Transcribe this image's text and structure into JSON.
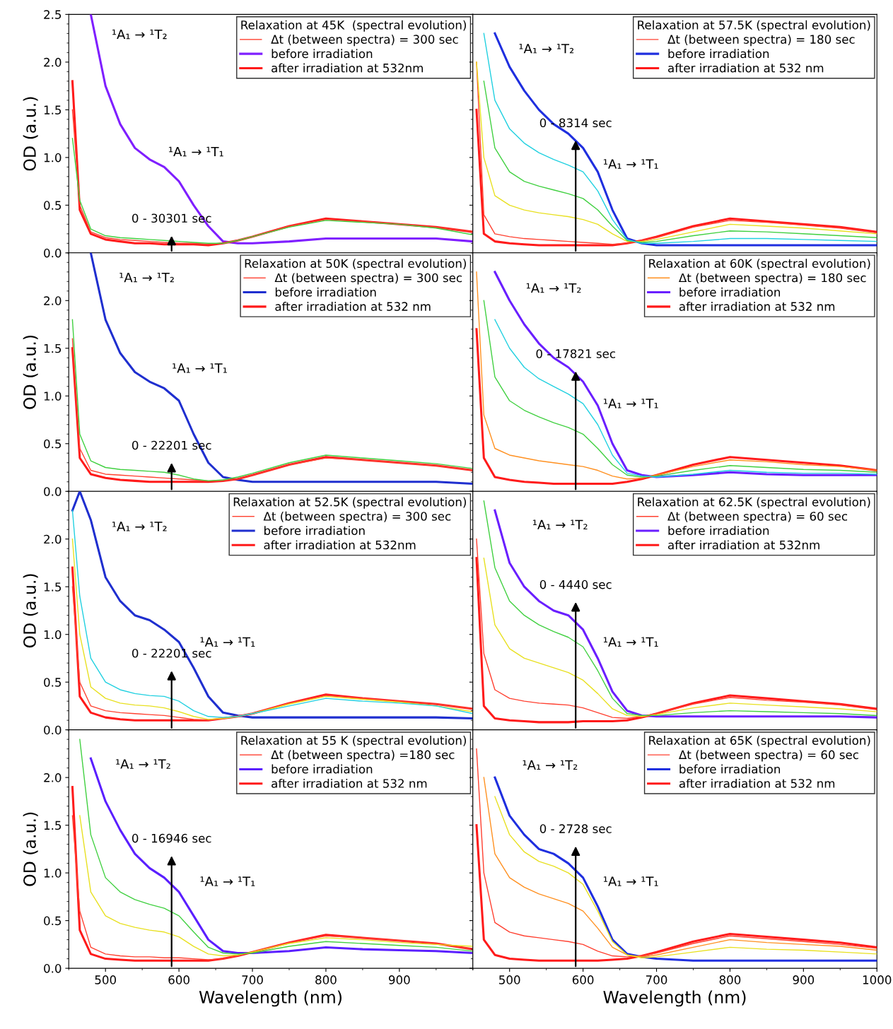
{
  "chart_data": [
    {
      "type": "line",
      "legend_title": "Relaxation at 45K  (spectral evolution)",
      "legend": "top right",
      "ylabel": "OD (a.u.)",
      "tick_labels": "y",
      "xlim": [
        450,
        1000
      ],
      "ylim": [
        0,
        2.5
      ],
      "xticks": [
        500,
        600,
        700,
        800,
        900
      ],
      "yticks": [
        {
          "value": 0,
          "label": "0.0"
        },
        0.5,
        {
          "value": 1,
          "label": "1.0"
        },
        1.5,
        {
          "value": 2,
          "label": "2.0"
        },
        2.5
      ],
      "x": [
        455,
        465,
        480,
        500,
        520,
        540,
        560,
        580,
        600,
        620,
        640,
        660,
        680,
        700,
        750,
        800,
        850,
        900,
        950,
        1000
      ],
      "series": [
        {
          "name": "Δt (between spectra) = 300 sec",
          "color": "#ff4030",
          "values": [
            1.5,
            0.5,
            0.22,
            0.16,
            0.14,
            0.13,
            0.12,
            0.11,
            0.1,
            0.1,
            0.09,
            0.1,
            0.13,
            0.17,
            0.28,
            0.35,
            0.33,
            0.3,
            0.27,
            0.22
          ]
        },
        {
          "name": "before irradiation",
          "color": "#7f1fff",
          "values": [
            null,
            null,
            2.5,
            1.75,
            1.35,
            1.1,
            0.98,
            0.9,
            0.75,
            0.5,
            0.28,
            0.12,
            0.1,
            0.1,
            0.12,
            0.15,
            0.15,
            0.15,
            0.15,
            0.12
          ]
        },
        {
          "name": "after irradiation at 532nm",
          "color": "#ff1a1a",
          "values": [
            1.8,
            0.45,
            0.2,
            0.14,
            0.12,
            0.1,
            0.1,
            0.09,
            0.09,
            0.09,
            0.08,
            0.1,
            0.13,
            0.17,
            0.28,
            0.36,
            0.33,
            0.3,
            0.27,
            0.22
          ]
        },
        {
          "color": "#40d040",
          "values": [
            1.2,
            0.55,
            0.25,
            0.18,
            0.16,
            0.15,
            0.14,
            0.13,
            0.12,
            0.11,
            0.1,
            0.1,
            0.13,
            0.17,
            0.27,
            0.34,
            0.32,
            0.3,
            0.26,
            0.19
          ]
        }
      ],
      "annotations": [
        "¹A₁ → ¹T₂",
        "¹A₁ → ¹T₁",
        "0 - 30301 sec"
      ]
    },
    {
      "type": "line",
      "legend_title": "Relaxation at 57.5K (spectral evolution)",
      "legend": "top right",
      "tick_labels": false,
      "xlim": [
        450,
        1000
      ],
      "ylim": [
        0,
        2.5
      ],
      "xticks": [
        500,
        600,
        700,
        800,
        900,
        1000
      ],
      "yticks": [
        0,
        0.5,
        1,
        1.5,
        2
      ],
      "x": [
        455,
        465,
        480,
        500,
        520,
        540,
        560,
        580,
        600,
        620,
        640,
        660,
        680,
        700,
        750,
        800,
        850,
        900,
        950,
        1000
      ],
      "series": [
        {
          "name": "Δt (between spectra) = 180 sec",
          "color": "#ff4030",
          "values": [
            2.0,
            0.4,
            0.2,
            0.17,
            0.15,
            0.14,
            0.13,
            0.12,
            0.11,
            0.1,
            0.09,
            0.1,
            0.13,
            0.16,
            0.27,
            0.34,
            0.32,
            0.29,
            0.26,
            0.21
          ]
        },
        {
          "name": "before irradiation",
          "color": "#1f2fdf",
          "values": [
            null,
            null,
            2.3,
            1.95,
            1.7,
            1.5,
            1.35,
            1.25,
            1.1,
            0.85,
            0.45,
            0.15,
            0.1,
            0.08,
            0.08,
            0.08,
            0.08,
            0.08,
            0.08,
            0.08
          ]
        },
        {
          "name": "after irradiation at 532 nm",
          "color": "#ff1a1a",
          "values": [
            1.5,
            0.2,
            0.12,
            0.1,
            0.09,
            0.08,
            0.08,
            0.08,
            0.08,
            0.08,
            0.08,
            0.1,
            0.13,
            0.17,
            0.28,
            0.36,
            0.33,
            0.3,
            0.27,
            0.22
          ]
        },
        {
          "color": "#e8e020",
          "values": [
            2.0,
            1.0,
            0.6,
            0.5,
            0.45,
            0.42,
            0.4,
            0.38,
            0.35,
            0.3,
            0.2,
            0.12,
            0.12,
            0.14,
            0.22,
            0.3,
            0.28,
            0.26,
            0.23,
            0.2
          ]
        },
        {
          "color": "#40d040",
          "values": [
            null,
            1.8,
            1.1,
            0.85,
            0.75,
            0.7,
            0.66,
            0.62,
            0.57,
            0.45,
            0.28,
            0.13,
            0.11,
            0.12,
            0.18,
            0.23,
            0.22,
            0.2,
            0.18,
            0.16
          ]
        },
        {
          "color": "#20d0e0",
          "values": [
            null,
            2.3,
            1.6,
            1.3,
            1.15,
            1.05,
            0.98,
            0.92,
            0.85,
            0.65,
            0.35,
            0.14,
            0.1,
            0.1,
            0.12,
            0.15,
            0.15,
            0.14,
            0.13,
            0.12
          ]
        }
      ],
      "annotations": [
        "¹A₁ → ¹T₂",
        "¹A₁ → ¹T₁",
        "0 - 8314 sec"
      ]
    },
    {
      "type": "line",
      "legend_title": "Relaxation at 50K (spectral evolution)",
      "legend": "top right",
      "ylabel": "OD (a.u.)",
      "tick_labels": "y",
      "xlim": [
        450,
        1000
      ],
      "ylim": [
        0,
        2.5
      ],
      "xticks": [
        500,
        600,
        700,
        800,
        900
      ],
      "yticks": [
        {
          "value": 0,
          "label": "0.0"
        },
        0.5,
        {
          "value": 1,
          "label": "1.0"
        },
        1.5,
        {
          "value": 2,
          "label": "2.0"
        }
      ],
      "x": [
        455,
        465,
        480,
        500,
        520,
        540,
        560,
        580,
        600,
        620,
        640,
        660,
        680,
        700,
        750,
        800,
        850,
        900,
        950,
        1000
      ],
      "series": [
        {
          "name": "Δt (between spectra) = 300 sec",
          "color": "#ff4030",
          "values": [
            1.6,
            0.45,
            0.22,
            0.18,
            0.17,
            0.16,
            0.15,
            0.14,
            0.13,
            0.12,
            0.11,
            0.11,
            0.13,
            0.17,
            0.28,
            0.35,
            0.33,
            0.3,
            0.27,
            0.22
          ]
        },
        {
          "name": "before irradiation",
          "color": "#1f2fcf",
          "values": [
            null,
            null,
            2.5,
            1.8,
            1.45,
            1.25,
            1.15,
            1.08,
            0.95,
            0.6,
            0.3,
            0.15,
            0.12,
            0.1,
            0.1,
            0.1,
            0.1,
            0.1,
            0.1,
            0.08
          ]
        },
        {
          "name": "after irradiation at 532 nm",
          "color": "#ff1a1a",
          "values": [
            1.5,
            0.35,
            0.18,
            0.14,
            0.12,
            0.11,
            0.1,
            0.1,
            0.1,
            0.1,
            0.1,
            0.11,
            0.13,
            0.17,
            0.28,
            0.36,
            0.33,
            0.3,
            0.27,
            0.22
          ]
        },
        {
          "color": "#40d040",
          "values": [
            1.8,
            0.6,
            0.32,
            0.25,
            0.23,
            0.22,
            0.21,
            0.2,
            0.17,
            0.13,
            0.11,
            0.12,
            0.15,
            0.19,
            0.3,
            0.38,
            0.35,
            0.32,
            0.29,
            0.24
          ]
        }
      ],
      "annotations": [
        "¹A₁ → ¹T₂",
        "¹A₁ → ¹T₁",
        "0 - 22201 sec"
      ]
    },
    {
      "type": "line",
      "legend_title": "Relaxation at 60K (spectral evolution)",
      "legend": "top right",
      "tick_labels": false,
      "xlim": [
        450,
        1000
      ],
      "ylim": [
        0,
        2.5
      ],
      "xticks": [
        500,
        600,
        700,
        800,
        900,
        1000
      ],
      "yticks": [
        0,
        0.5,
        1,
        1.5,
        2
      ],
      "x": [
        455,
        465,
        480,
        500,
        520,
        540,
        560,
        580,
        600,
        620,
        640,
        660,
        680,
        700,
        750,
        800,
        850,
        900,
        950,
        1000
      ],
      "series": [
        {
          "name": "Δt (between spectra) = 180 sec",
          "color": "#ff9020",
          "values": [
            2.3,
            0.8,
            0.45,
            0.38,
            0.35,
            0.32,
            0.3,
            0.28,
            0.26,
            0.22,
            0.16,
            0.13,
            0.14,
            0.17,
            0.26,
            0.33,
            0.31,
            0.28,
            0.26,
            0.22
          ]
        },
        {
          "name": "before irradiation",
          "color": "#6a1fff",
          "values": [
            null,
            null,
            2.3,
            2.0,
            1.75,
            1.55,
            1.4,
            1.3,
            1.15,
            0.9,
            0.5,
            0.22,
            0.17,
            0.15,
            0.17,
            0.2,
            0.18,
            0.17,
            0.17,
            0.17
          ]
        },
        {
          "name": "after irradiation at 532 nm",
          "color": "#ff1a1a",
          "values": [
            1.7,
            0.35,
            0.15,
            0.12,
            0.1,
            0.09,
            0.08,
            0.08,
            0.08,
            0.08,
            0.08,
            0.1,
            0.13,
            0.17,
            0.28,
            0.36,
            0.33,
            0.3,
            0.27,
            0.22
          ]
        },
        {
          "color": "#40d040",
          "values": [
            null,
            2.0,
            1.2,
            0.95,
            0.85,
            0.78,
            0.72,
            0.67,
            0.6,
            0.45,
            0.28,
            0.17,
            0.15,
            0.16,
            0.22,
            0.27,
            0.25,
            0.23,
            0.22,
            0.2
          ]
        },
        {
          "color": "#20d0e0",
          "values": [
            null,
            null,
            1.8,
            1.5,
            1.3,
            1.18,
            1.1,
            1.02,
            0.92,
            0.7,
            0.38,
            0.19,
            0.16,
            0.15,
            0.18,
            0.22,
            0.2,
            0.19,
            0.19,
            0.18
          ]
        }
      ],
      "annotations": [
        "¹A₁ → ¹T₂",
        "¹A₁ → ¹T₁",
        "0 - 17821 sec"
      ]
    },
    {
      "type": "line",
      "legend_title": "Relaxation at 52.5K (spectral evolution)",
      "legend": "top right",
      "ylabel": "OD (a.u.)",
      "tick_labels": "y",
      "xlim": [
        450,
        1000
      ],
      "ylim": [
        0,
        2.5
      ],
      "xticks": [
        500,
        600,
        700,
        800,
        900
      ],
      "yticks": [
        {
          "value": 0,
          "label": "0.0"
        },
        0.5,
        {
          "value": 1,
          "label": "1.0"
        },
        1.5,
        {
          "value": 2,
          "label": "2.0"
        }
      ],
      "x": [
        455,
        465,
        480,
        500,
        520,
        540,
        560,
        580,
        600,
        620,
        640,
        660,
        680,
        700,
        750,
        800,
        850,
        900,
        950,
        1000
      ],
      "series": [
        {
          "name": "Δt (between spectra) = 300 sec",
          "color": "#ff4030",
          "values": [
            1.5,
            0.5,
            0.25,
            0.2,
            0.18,
            0.17,
            0.16,
            0.15,
            0.13,
            0.11,
            0.1,
            0.12,
            0.14,
            0.17,
            0.28,
            0.36,
            0.33,
            0.3,
            0.27,
            0.22
          ]
        },
        {
          "name": "before irradiation",
          "color": "#1f2fcf",
          "values": [
            2.3,
            2.5,
            2.2,
            1.6,
            1.35,
            1.2,
            1.15,
            1.05,
            0.92,
            0.65,
            0.35,
            0.18,
            0.15,
            0.13,
            0.13,
            0.13,
            0.13,
            0.13,
            0.13,
            0.12
          ]
        },
        {
          "name": "after irradiation at 532nm",
          "color": "#ff1a1a",
          "values": [
            1.7,
            0.35,
            0.18,
            0.13,
            0.11,
            0.1,
            0.1,
            0.1,
            0.1,
            0.1,
            0.1,
            0.12,
            0.14,
            0.17,
            0.28,
            0.37,
            0.33,
            0.3,
            0.27,
            0.22
          ]
        },
        {
          "color": "#e8e020",
          "values": [
            2.0,
            1.0,
            0.45,
            0.33,
            0.28,
            0.26,
            0.25,
            0.23,
            0.19,
            0.14,
            0.11,
            0.12,
            0.14,
            0.17,
            0.27,
            0.35,
            0.32,
            0.29,
            0.25,
            0.19
          ]
        },
        {
          "color": "#20d0e0",
          "values": [
            2.3,
            1.4,
            0.75,
            0.5,
            0.42,
            0.38,
            0.36,
            0.35,
            0.3,
            0.2,
            0.14,
            0.13,
            0.14,
            0.17,
            0.25,
            0.33,
            0.3,
            0.28,
            0.25,
            0.17
          ]
        }
      ],
      "annotations": [
        "¹A₁ → ¹T₂",
        "¹A₁ → ¹T₁",
        "0 - 22201 sec"
      ]
    },
    {
      "type": "line",
      "legend_title": "Relaxation at 62.5K (spectral evolution)",
      "legend": "top right",
      "tick_labels": false,
      "xlim": [
        450,
        1000
      ],
      "ylim": [
        0,
        2.5
      ],
      "xticks": [
        500,
        600,
        700,
        800,
        900,
        1000
      ],
      "yticks": [
        0,
        0.5,
        1,
        1.5,
        2
      ],
      "x": [
        455,
        465,
        480,
        500,
        520,
        540,
        560,
        580,
        600,
        620,
        640,
        660,
        680,
        700,
        750,
        800,
        850,
        900,
        950,
        1000
      ],
      "series": [
        {
          "name": "Δt (between spectra) = 60 sec",
          "color": "#ff4030",
          "values": [
            2.0,
            0.8,
            0.42,
            0.33,
            0.3,
            0.28,
            0.27,
            0.26,
            0.23,
            0.18,
            0.13,
            0.12,
            0.14,
            0.17,
            0.27,
            0.34,
            0.31,
            0.29,
            0.26,
            0.21
          ]
        },
        {
          "name": "before irradiation",
          "color": "#6a1fff",
          "values": [
            null,
            null,
            2.3,
            1.75,
            1.5,
            1.35,
            1.25,
            1.2,
            1.05,
            0.75,
            0.4,
            0.2,
            0.15,
            0.14,
            0.14,
            0.14,
            0.14,
            0.14,
            0.14,
            0.13
          ]
        },
        {
          "name": "after irradiation at 532nm",
          "color": "#ff1a1a",
          "values": [
            1.8,
            0.25,
            0.12,
            0.1,
            0.09,
            0.08,
            0.08,
            0.08,
            0.09,
            0.09,
            0.09,
            0.1,
            0.13,
            0.17,
            0.28,
            0.36,
            0.33,
            0.3,
            0.27,
            0.22
          ]
        },
        {
          "color": "#e8e020",
          "values": [
            null,
            1.8,
            1.1,
            0.85,
            0.75,
            0.7,
            0.65,
            0.6,
            0.52,
            0.38,
            0.22,
            0.15,
            0.14,
            0.16,
            0.23,
            0.28,
            0.26,
            0.24,
            0.22,
            0.19
          ]
        },
        {
          "color": "#40d040",
          "values": [
            null,
            2.4,
            1.7,
            1.35,
            1.2,
            1.1,
            1.03,
            0.97,
            0.87,
            0.62,
            0.33,
            0.17,
            0.15,
            0.15,
            0.18,
            0.2,
            0.19,
            0.18,
            0.17,
            0.15
          ]
        }
      ],
      "annotations": [
        "¹A₁ → ¹T₂",
        "¹A₁ → ¹T₁",
        "0 - 4440 sec"
      ]
    },
    {
      "type": "line",
      "legend_title": "Relaxation at 55 K (spectral evolution)",
      "legend": "top right",
      "ylabel": "OD (a.u.)",
      "xlabel": "Wavelength (nm)",
      "xlim": [
        450,
        1000
      ],
      "ylim": [
        0,
        2.5
      ],
      "xticks": [
        500,
        600,
        700,
        800,
        900
      ],
      "yticks": [
        {
          "value": 0,
          "label": "0.0"
        },
        0.5,
        {
          "value": 1,
          "label": "1.0"
        },
        1.5,
        {
          "value": 2,
          "label": "2.0"
        }
      ],
      "x": [
        455,
        465,
        480,
        500,
        520,
        540,
        560,
        580,
        600,
        620,
        640,
        660,
        680,
        700,
        750,
        800,
        850,
        900,
        950,
        1000
      ],
      "series": [
        {
          "name": "Δt (between spectra) =180 sec",
          "color": "#ff4030",
          "values": [
            1.6,
            0.6,
            0.22,
            0.15,
            0.13,
            0.12,
            0.12,
            0.11,
            0.11,
            0.1,
            0.09,
            0.1,
            0.13,
            0.17,
            0.27,
            0.34,
            0.32,
            0.29,
            0.26,
            0.2
          ]
        },
        {
          "name": "before irradiation",
          "color": "#5a1fff",
          "values": [
            null,
            null,
            2.2,
            1.75,
            1.45,
            1.2,
            1.05,
            0.95,
            0.8,
            0.55,
            0.3,
            0.18,
            0.16,
            0.16,
            0.18,
            0.22,
            0.2,
            0.19,
            0.18,
            0.16
          ]
        },
        {
          "name": "after irradiation at 532 nm",
          "color": "#ff1a1a",
          "values": [
            1.9,
            0.4,
            0.15,
            0.1,
            0.09,
            0.08,
            0.08,
            0.08,
            0.08,
            0.08,
            0.08,
            0.1,
            0.13,
            0.17,
            0.27,
            0.35,
            0.32,
            0.29,
            0.26,
            0.2
          ]
        },
        {
          "color": "#e8e020",
          "values": [
            null,
            1.6,
            0.8,
            0.55,
            0.47,
            0.43,
            0.4,
            0.38,
            0.33,
            0.23,
            0.15,
            0.13,
            0.14,
            0.17,
            0.26,
            0.32,
            0.3,
            0.27,
            0.25,
            0.23
          ]
        },
        {
          "color": "#40d040",
          "values": [
            null,
            2.4,
            1.4,
            0.95,
            0.8,
            0.72,
            0.67,
            0.63,
            0.55,
            0.38,
            0.22,
            0.16,
            0.15,
            0.16,
            0.23,
            0.28,
            0.26,
            0.24,
            0.22,
            0.18
          ]
        }
      ],
      "annotations": [
        "¹A₁ → ¹T₂",
        "¹A₁ → ¹T₁",
        "0 - 16946 sec"
      ]
    },
    {
      "type": "line",
      "legend_title": "Relaxation at 65K (spectral evolution)",
      "legend": "top right",
      "xlabel": "Wavelength (nm)",
      "tick_labels": "x",
      "xlim": [
        450,
        1000
      ],
      "ylim": [
        0,
        2.5
      ],
      "xticks": [
        500,
        600,
        700,
        800,
        900,
        1000
      ],
      "yticks": [
        0,
        0.5,
        1,
        1.5,
        2
      ],
      "x": [
        455,
        465,
        480,
        500,
        520,
        540,
        560,
        580,
        600,
        620,
        640,
        660,
        680,
        700,
        750,
        800,
        850,
        900,
        950,
        1000
      ],
      "series": [
        {
          "name": "Δt (between spectra) = 60 sec",
          "color": "#ff4030",
          "values": [
            2.3,
            1.0,
            0.48,
            0.38,
            0.34,
            0.32,
            0.3,
            0.28,
            0.25,
            0.18,
            0.13,
            0.12,
            0.13,
            0.16,
            0.26,
            0.34,
            0.31,
            0.28,
            0.25,
            0.21
          ]
        },
        {
          "name": "before irradiation",
          "color": "#1f2fdf",
          "values": [
            null,
            null,
            2.0,
            1.6,
            1.4,
            1.25,
            1.2,
            1.1,
            0.95,
            0.65,
            0.3,
            0.15,
            0.12,
            0.1,
            0.08,
            0.08,
            0.08,
            0.08,
            0.08,
            0.08
          ]
        },
        {
          "name": "after irradiation at 532 nm",
          "color": "#ff1a1a",
          "values": [
            1.5,
            0.3,
            0.14,
            0.1,
            0.09,
            0.08,
            0.08,
            0.08,
            0.08,
            0.08,
            0.09,
            0.1,
            0.13,
            0.17,
            0.28,
            0.36,
            0.33,
            0.3,
            0.27,
            0.22
          ]
        },
        {
          "color": "#ff9020",
          "values": [
            null,
            2.0,
            1.2,
            0.95,
            0.85,
            0.78,
            0.73,
            0.68,
            0.6,
            0.42,
            0.22,
            0.14,
            0.12,
            0.14,
            0.22,
            0.3,
            0.27,
            0.25,
            0.23,
            0.19
          ]
        },
        {
          "color": "#e8e020",
          "values": [
            null,
            null,
            1.8,
            1.4,
            1.22,
            1.12,
            1.07,
            1.0,
            0.88,
            0.6,
            0.28,
            0.14,
            0.11,
            0.12,
            0.17,
            0.22,
            0.2,
            0.19,
            0.17,
            0.15
          ]
        }
      ],
      "annotations": [
        "¹A₁ → ¹T₂",
        "¹A₁ → ¹T₁",
        "0 - 2728 sec"
      ]
    }
  ]
}
